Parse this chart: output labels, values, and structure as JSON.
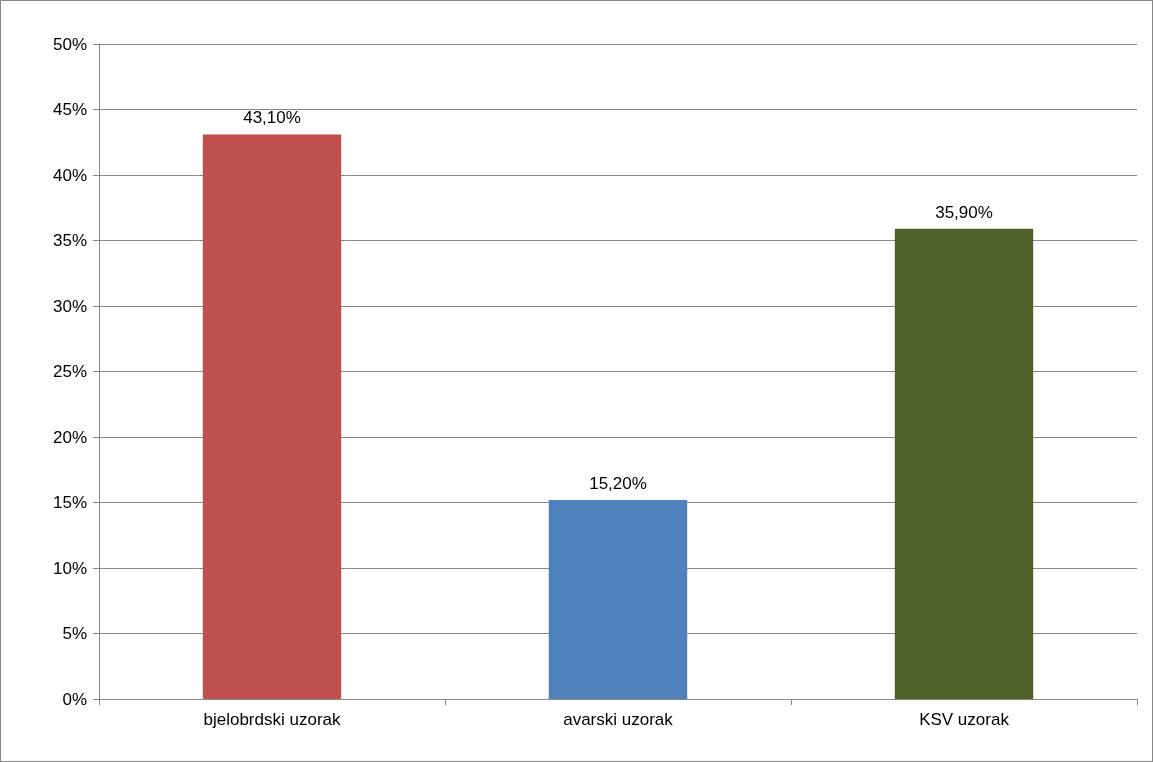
{
  "chart_data": {
    "type": "bar",
    "categories": [
      "bjelobrdski uzorak",
      "avarski uzorak",
      "KSV uzorak"
    ],
    "values": [
      43.1,
      15.2,
      35.9
    ],
    "colors": [
      "#c0504d",
      "#4f81bd",
      "#4f6228"
    ],
    "value_labels": [
      "43,10%",
      "15,20%",
      "35,90%"
    ],
    "ylim": [
      0,
      50
    ],
    "yticks": [
      {
        "value": 0,
        "label": "0%"
      },
      {
        "value": 5,
        "label": "5%"
      },
      {
        "value": 10,
        "label": "10%"
      },
      {
        "value": 15,
        "label": "15%"
      },
      {
        "value": 20,
        "label": "20%"
      },
      {
        "value": 25,
        "label": "25%"
      },
      {
        "value": 30,
        "label": "30%"
      },
      {
        "value": 35,
        "label": "35%"
      },
      {
        "value": 40,
        "label": "40%"
      },
      {
        "value": 45,
        "label": "45%"
      },
      {
        "value": 50,
        "label": "50%"
      }
    ],
    "grid": "y"
  }
}
